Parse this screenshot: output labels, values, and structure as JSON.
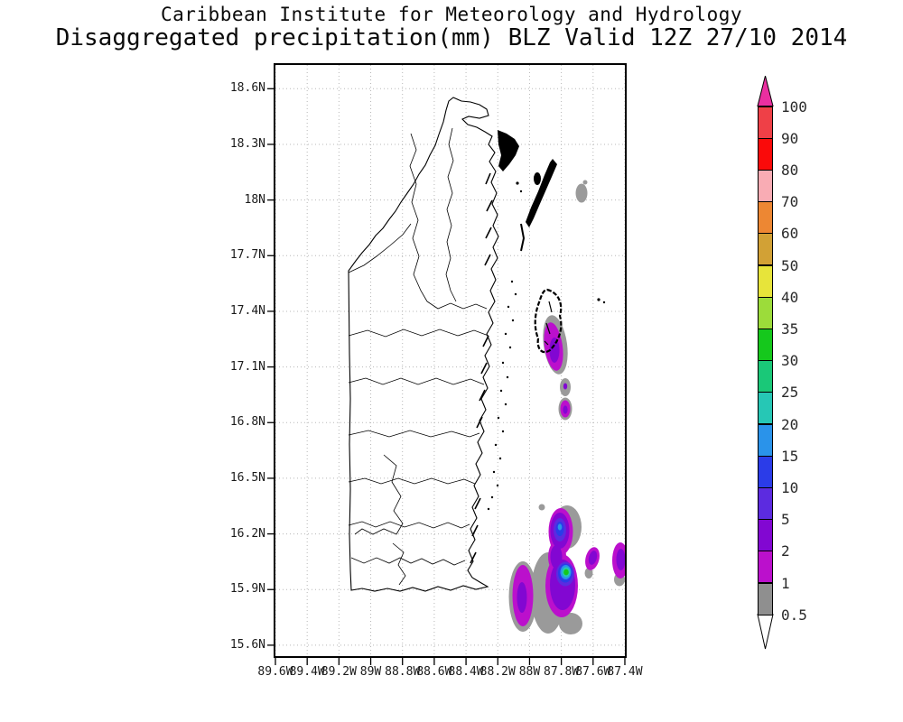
{
  "title": {
    "line1": "Caribbean Institute for Meteorology and Hydrology",
    "line2": "Disaggregated precipitation(mm) BLZ Valid 12Z 27/10 2014"
  },
  "map": {
    "region": "Belize (BLZ)",
    "lat_labels": [
      "18.6N",
      "18.3N",
      "18N",
      "17.7N",
      "17.4N",
      "17.1N",
      "16.8N",
      "16.5N",
      "16.2N",
      "15.9N",
      "15.6N"
    ],
    "lon_labels": [
      "89.6W",
      "89.4W",
      "89.2W",
      "89W",
      "88.8W",
      "88.6W",
      "88.4W",
      "88.2W",
      "88W",
      "87.8W",
      "87.6W",
      "87.4W"
    ],
    "gridline_color": "#b8b8b8",
    "coastline_color": "#000000"
  },
  "colorbar": {
    "units": "mm",
    "levels": [
      "100",
      "90",
      "80",
      "70",
      "60",
      "50",
      "40",
      "35",
      "30",
      "25",
      "20",
      "15",
      "10",
      "5",
      "2",
      "1",
      "0.5"
    ],
    "segment_colors_top_to_bottom": [
      "#ef4047",
      "#fa0a0a",
      "#f9acb4",
      "#ed8733",
      "#d2a135",
      "#e7e43a",
      "#9cdc3a",
      "#15c81c",
      "#1ac878",
      "#26c7b5",
      "#2a93ea",
      "#2b3ce8",
      "#5c2be0",
      "#8207d2",
      "#bb10cc",
      "#8f8f8f"
    ],
    "arrow_top_color": "#ea2fa0",
    "arrow_bottom_color": "#ffffff"
  },
  "chart_data": {
    "type": "map-contour",
    "variable": "Disaggregated precipitation (mm)",
    "valid_time": "12Z 27/10 2014",
    "lat_range": [
      "15.6N",
      "18.6N"
    ],
    "lon_range": [
      "89.6W",
      "87.4W"
    ],
    "contour_levels_mm": [
      0.5,
      1,
      2,
      5,
      10,
      15,
      20,
      25,
      30,
      35,
      40,
      50,
      60,
      70,
      80,
      90,
      100
    ],
    "precipitation_features": [
      {
        "location": "~18.0N 87.6W (offshore, NE)",
        "intensity_mm": "0.5-1"
      },
      {
        "location": "~17.2N 87.85W (Turneffe Atoll area)",
        "intensity_mm": "2-5"
      },
      {
        "location": "~16.9N 87.8W (small cell)",
        "intensity_mm": "2-5"
      },
      {
        "location": "~15.9N 88.05W (elongated cell)",
        "intensity_mm": "2-5"
      },
      {
        "location": "~16.0N 87.8W (main offshore cluster, green core)",
        "intensity_mm": "25-30 core, 0.5-1 fringe"
      },
      {
        "location": "~16.1N 87.65W (small cell)",
        "intensity_mm": "2-5"
      },
      {
        "location": "~16.1N 87.45W (at east frame edge)",
        "intensity_mm": "2-5"
      }
    ]
  }
}
